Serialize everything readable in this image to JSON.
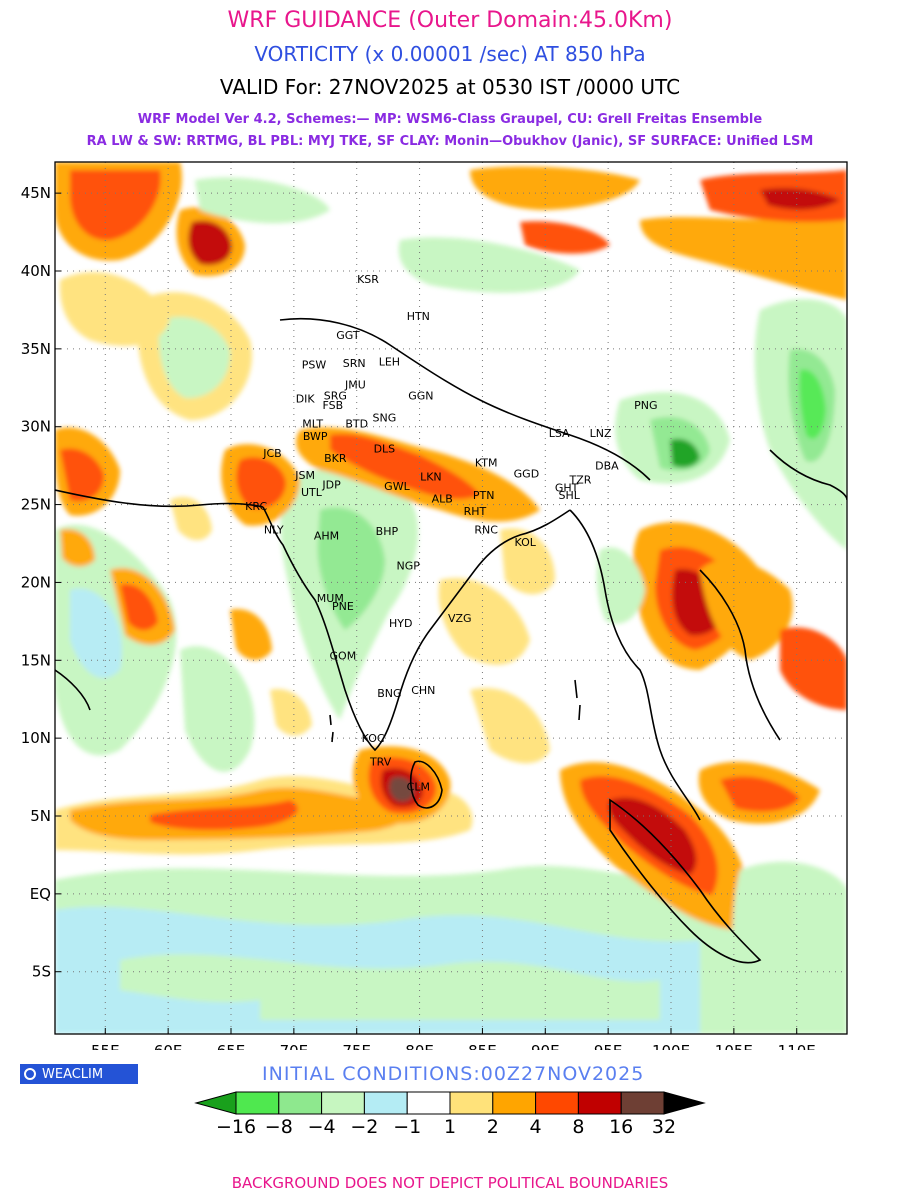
{
  "header": {
    "title": "WRF GUIDANCE (Outer Domain:45.0Km)",
    "variable": "VORTICITY (x 0.00001 /sec) AT 850 hPa",
    "valid": "VALID For: 27NOV2025 at 0530 IST /0000 UTC",
    "model_line1": "WRF Model Ver 4.2, Schemes:— MP: WSM6-Class Graupel, CU: Grell Freitas Ensemble",
    "model_line2": "RA LW & SW: RRTMG, BL PBL: MYJ TKE, SF CLAY: Monin—Obukhov (Janic), SF SURFACE: Unified LSM"
  },
  "map": {
    "lon_range": [
      51,
      114
    ],
    "lat_range": [
      -9,
      47
    ],
    "lon_ticks": [
      {
        "v": 55,
        "t": "55E"
      },
      {
        "v": 60,
        "t": "60E"
      },
      {
        "v": 65,
        "t": "65E"
      },
      {
        "v": 70,
        "t": "70E"
      },
      {
        "v": 75,
        "t": "75E"
      },
      {
        "v": 80,
        "t": "80E"
      },
      {
        "v": 85,
        "t": "85E"
      },
      {
        "v": 90,
        "t": "90E"
      },
      {
        "v": 95,
        "t": "95E"
      },
      {
        "v": 100,
        "t": "100E"
      },
      {
        "v": 105,
        "t": "105E"
      },
      {
        "v": 110,
        "t": "110E"
      }
    ],
    "lat_ticks": [
      {
        "v": 45,
        "t": "45N"
      },
      {
        "v": 40,
        "t": "40N"
      },
      {
        "v": 35,
        "t": "35N"
      },
      {
        "v": 30,
        "t": "30N"
      },
      {
        "v": 25,
        "t": "25N"
      },
      {
        "v": 20,
        "t": "20N"
      },
      {
        "v": 15,
        "t": "15N"
      },
      {
        "v": 10,
        "t": "10N"
      },
      {
        "v": 5,
        "t": "5N"
      },
      {
        "v": 0,
        "t": "EQ"
      },
      {
        "v": -5,
        "t": "5S"
      }
    ],
    "stations": [
      {
        "code": "KSR",
        "lon": 75.9,
        "lat": 39.5
      },
      {
        "code": "HTN",
        "lon": 79.9,
        "lat": 37.1
      },
      {
        "code": "GGT",
        "lon": 74.3,
        "lat": 35.9
      },
      {
        "code": "PSW",
        "lon": 71.6,
        "lat": 34.0
      },
      {
        "code": "SRN",
        "lon": 74.8,
        "lat": 34.1
      },
      {
        "code": "LEH",
        "lon": 77.6,
        "lat": 34.2
      },
      {
        "code": "JMU",
        "lon": 74.9,
        "lat": 32.7
      },
      {
        "code": "DIK",
        "lon": 70.9,
        "lat": 31.8
      },
      {
        "code": "SRG",
        "lon": 73.3,
        "lat": 32.0
      },
      {
        "code": "GGN",
        "lon": 80.1,
        "lat": 32.0
      },
      {
        "code": "FSB",
        "lon": 73.1,
        "lat": 31.4
      },
      {
        "code": "MLT",
        "lon": 71.5,
        "lat": 30.2
      },
      {
        "code": "BTD",
        "lon": 75.0,
        "lat": 30.2
      },
      {
        "code": "SNG",
        "lon": 77.2,
        "lat": 30.6
      },
      {
        "code": "BWP",
        "lon": 71.7,
        "lat": 29.4
      },
      {
        "code": "PNG",
        "lon": 98.0,
        "lat": 31.4
      },
      {
        "code": "LSA",
        "lon": 91.1,
        "lat": 29.6
      },
      {
        "code": "LNZ",
        "lon": 94.4,
        "lat": 29.6
      },
      {
        "code": "JCB",
        "lon": 68.3,
        "lat": 28.3
      },
      {
        "code": "DLS",
        "lon": 77.2,
        "lat": 28.6
      },
      {
        "code": "BKR",
        "lon": 73.3,
        "lat": 28.0
      },
      {
        "code": "KTM",
        "lon": 85.3,
        "lat": 27.7
      },
      {
        "code": "JSM",
        "lon": 70.9,
        "lat": 26.9
      },
      {
        "code": "LKN",
        "lon": 80.9,
        "lat": 26.8
      },
      {
        "code": "JDP",
        "lon": 73.0,
        "lat": 26.3
      },
      {
        "code": "GWL",
        "lon": 78.2,
        "lat": 26.2
      },
      {
        "code": "UTL",
        "lon": 71.4,
        "lat": 25.8
      },
      {
        "code": "GGD",
        "lon": 88.5,
        "lat": 27.0
      },
      {
        "code": "TZR",
        "lon": 92.8,
        "lat": 26.6
      },
      {
        "code": "GHT",
        "lon": 91.7,
        "lat": 26.1
      },
      {
        "code": "DBA",
        "lon": 94.9,
        "lat": 27.5
      },
      {
        "code": "ALB",
        "lon": 81.8,
        "lat": 25.4
      },
      {
        "code": "PTN",
        "lon": 85.1,
        "lat": 25.6
      },
      {
        "code": "SHL",
        "lon": 91.9,
        "lat": 25.6
      },
      {
        "code": "RHT",
        "lon": 84.4,
        "lat": 24.6
      },
      {
        "code": "KRC",
        "lon": 67.0,
        "lat": 24.9
      },
      {
        "code": "NLY",
        "lon": 68.4,
        "lat": 23.4
      },
      {
        "code": "AHM",
        "lon": 72.6,
        "lat": 23.0
      },
      {
        "code": "BHP",
        "lon": 77.4,
        "lat": 23.3
      },
      {
        "code": "RNC",
        "lon": 85.3,
        "lat": 23.4
      },
      {
        "code": "KOL",
        "lon": 88.4,
        "lat": 22.6
      },
      {
        "code": "NGP",
        "lon": 79.1,
        "lat": 21.1
      },
      {
        "code": "MUM",
        "lon": 72.9,
        "lat": 19.0
      },
      {
        "code": "PNE",
        "lon": 73.9,
        "lat": 18.5
      },
      {
        "code": "HYD",
        "lon": 78.5,
        "lat": 17.4
      },
      {
        "code": "VZG",
        "lon": 83.2,
        "lat": 17.7
      },
      {
        "code": "GOM",
        "lon": 73.9,
        "lat": 15.3
      },
      {
        "code": "CHN",
        "lon": 80.3,
        "lat": 13.1
      },
      {
        "code": "BNG",
        "lon": 77.6,
        "lat": 12.9
      },
      {
        "code": "KOC",
        "lon": 76.3,
        "lat": 10.0
      },
      {
        "code": "TRV",
        "lon": 76.9,
        "lat": 8.5
      },
      {
        "code": "CLM",
        "lon": 79.9,
        "lat": 6.9
      }
    ]
  },
  "credit": {
    "label": "WEACLIM",
    "icon": "copyright-icon"
  },
  "initial_conditions": "INITIAL CONDITIONS:00Z27NOV2025",
  "colorbar": {
    "colors": [
      "#19a01c",
      "#4fe84f",
      "#8ee88e",
      "#c6f6c0",
      "#b4ecf4",
      "#ffffff",
      "#ffe27a",
      "#ffa500",
      "#ff4800",
      "#c00000",
      "#6e3f34",
      "#000000"
    ],
    "labels": [
      "−16",
      "−8",
      "−4",
      "−2",
      "−1",
      "1",
      "2",
      "4",
      "8",
      "16",
      "32"
    ]
  },
  "footer": "BACKGROUND DOES NOT DEPICT POLITICAL BOUNDARIES"
}
